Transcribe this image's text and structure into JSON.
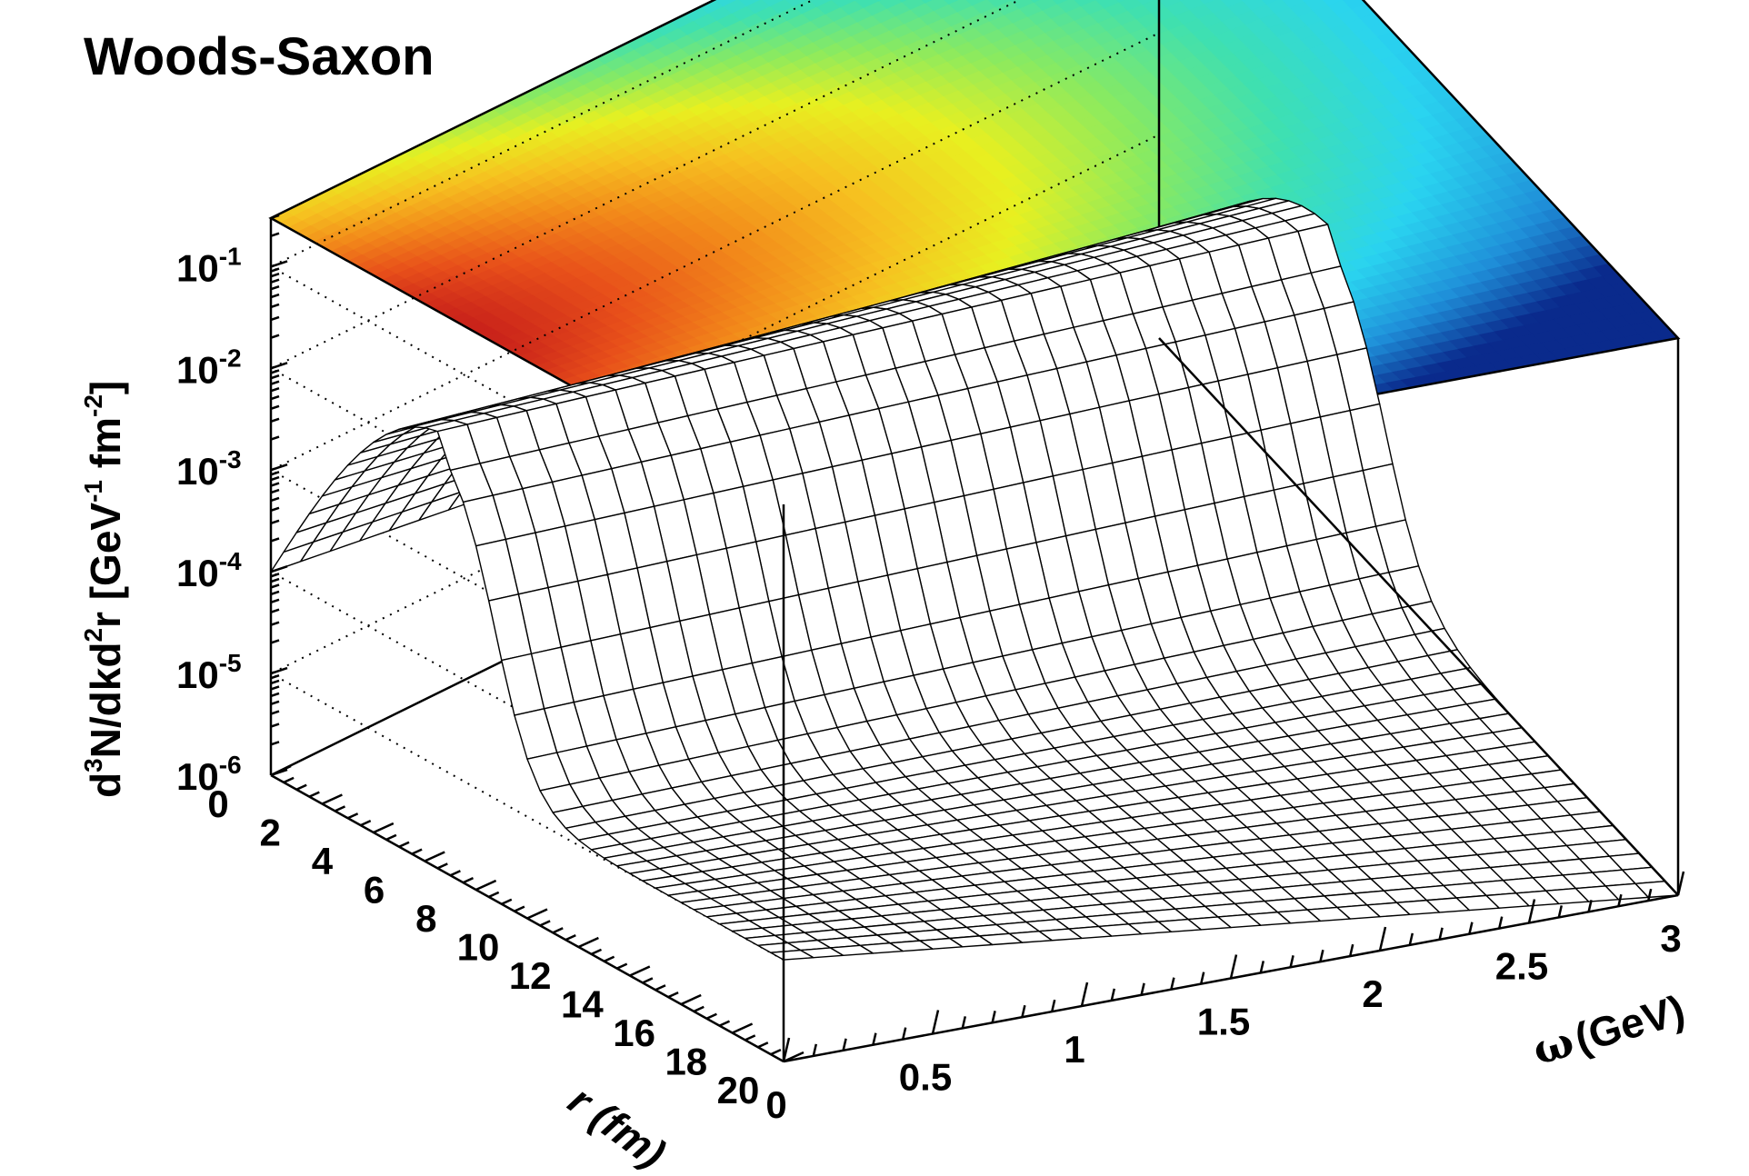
{
  "chart_data": {
    "type": "surface",
    "title": "Woods-Saxon",
    "zlabel": "d³N/dkd²r [GeV⁻¹ fm⁻²]",
    "zlabel_parts": {
      "p1": "d",
      "s1": "3",
      "p2": "N/dkd",
      "s2": "2",
      "p3": "r [GeV",
      "s3": "-1",
      "p4": " fm",
      "s4": "-2",
      "p5": "]"
    },
    "xlabel": "ω (GeV)",
    "xlabel_parts": {
      "symbol": "ω",
      "unit": "(GeV)"
    },
    "ylabel": "r (fm)",
    "xlim": [
      0,
      3
    ],
    "ylim": [
      0,
      20
    ],
    "zlim": [
      1e-06,
      0.3
    ],
    "zscale": "log",
    "grid": true,
    "x_ticks": [
      "0",
      "0.5",
      "1",
      "1.5",
      "2",
      "2.5",
      "3"
    ],
    "y_ticks": [
      "0",
      "2",
      "4",
      "6",
      "8",
      "10",
      "12",
      "14",
      "16",
      "18",
      "20"
    ],
    "z_ticks": [
      {
        "base": "10",
        "exp": "-6"
      },
      {
        "base": "10",
        "exp": "-5"
      },
      {
        "base": "10",
        "exp": "-4"
      },
      {
        "base": "10",
        "exp": "-3"
      },
      {
        "base": "10",
        "exp": "-2"
      },
      {
        "base": "10",
        "exp": "-1"
      }
    ],
    "surface_model": {
      "r_peak_fm": 6.8,
      "r_width_fm": 0.8,
      "z_at_peak_omega0": 0.02,
      "z_at_r0_omega0": 0.0001,
      "z_at_r20_omega0": 1e-05,
      "z_at_peak_omega3": 0.0008,
      "z_at_r20_omega3": 1e-06
    },
    "projection": {
      "type": "color contour on top plane",
      "palette": [
        "#0a2a8c",
        "#1f8fd9",
        "#2ad4f0",
        "#3fe0b0",
        "#8aea60",
        "#e8f020",
        "#f6c020",
        "#f28a1a",
        "#e8501a",
        "#c8201a"
      ]
    }
  }
}
